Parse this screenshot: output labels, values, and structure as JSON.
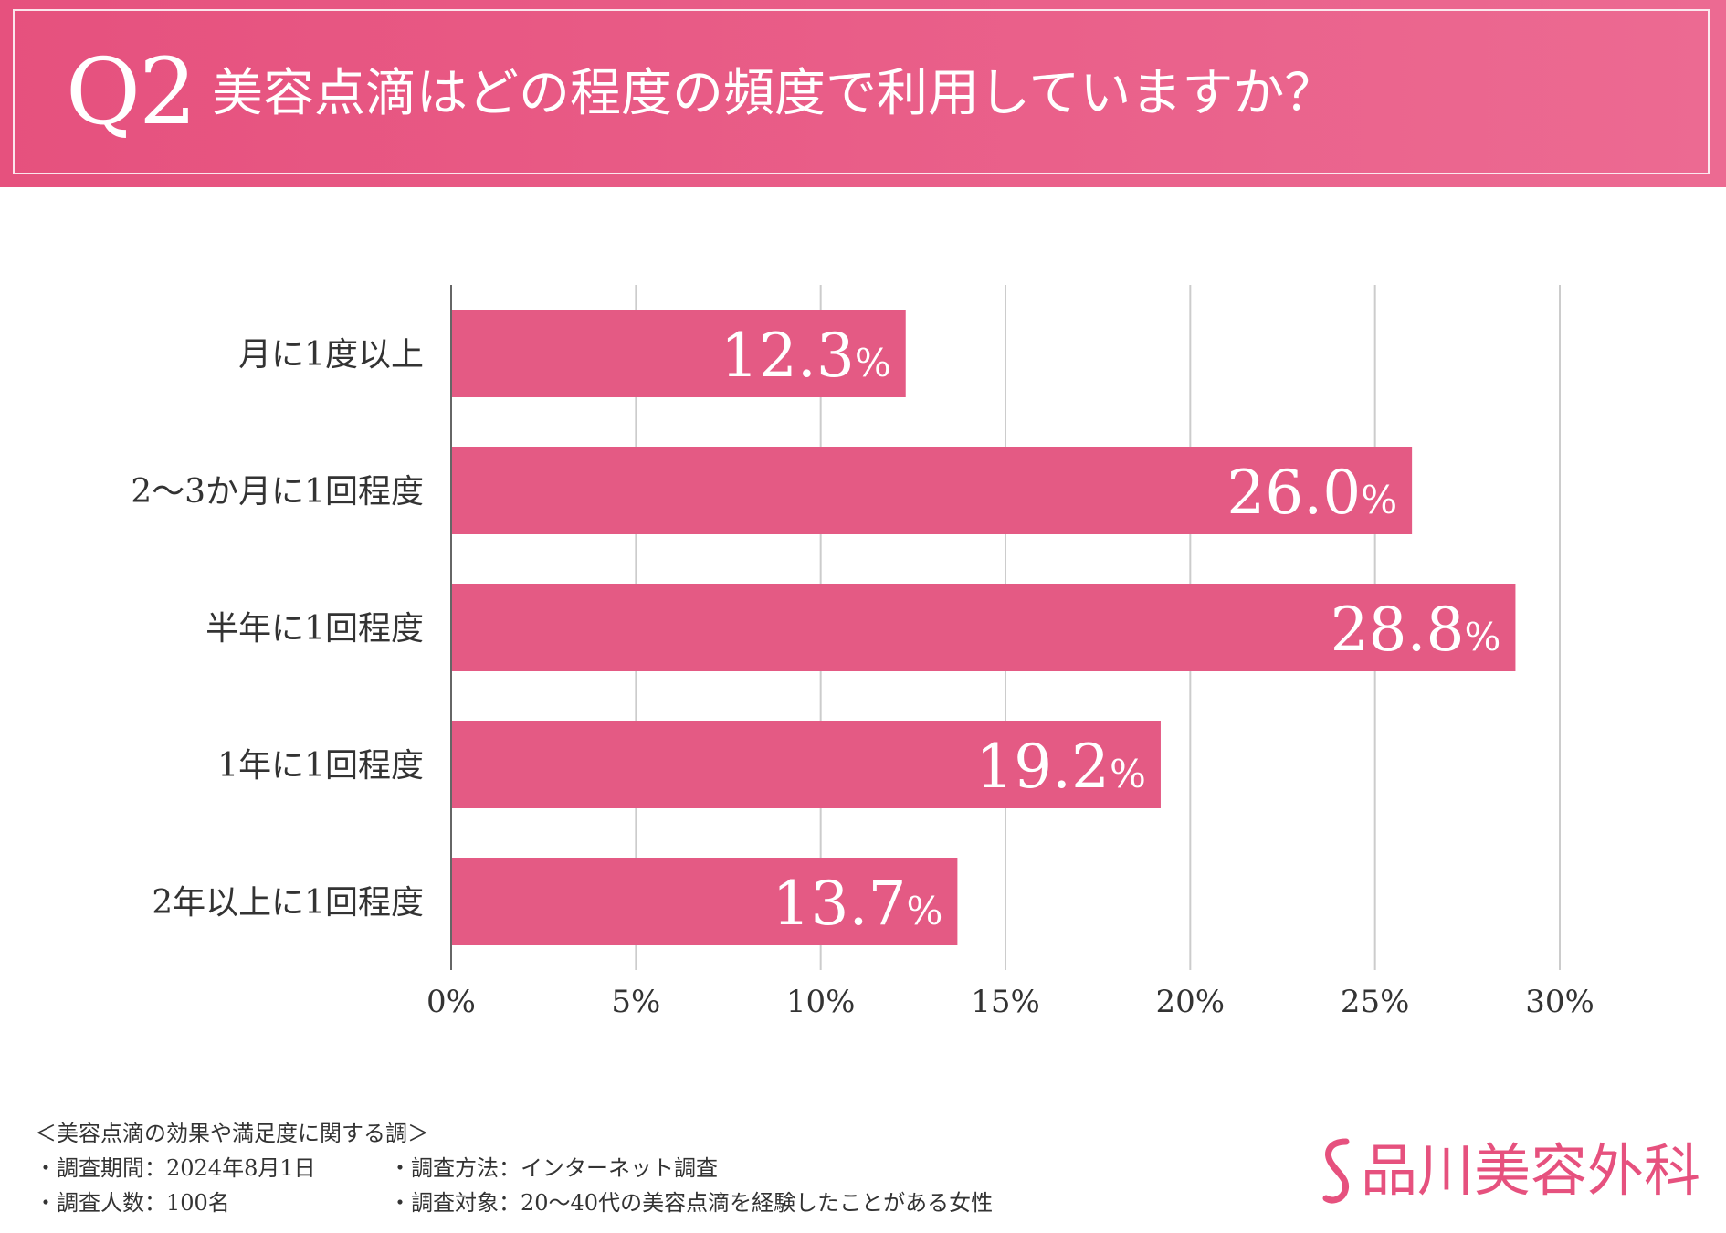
{
  "header": {
    "q_label": "Q2",
    "title": "美容点滴はどの程度の頻度で利用していますか？"
  },
  "colors": {
    "bar": "#e45a84",
    "header": "#e6517e",
    "grid": "#cccccc",
    "axis": "#666666",
    "text": "#333333",
    "label": "#ffffff"
  },
  "chart_data": {
    "type": "bar",
    "orientation": "horizontal",
    "title": "美容点滴はどの程度の頻度で利用していますか？",
    "categories": [
      "月に1度以上",
      "2〜3か月に1回程度",
      "半年に1回程度",
      "1年に1回程度",
      "2年以上に1回程度"
    ],
    "values": [
      12.3,
      26.0,
      28.8,
      19.2,
      13.7
    ],
    "value_labels": [
      "12.3",
      "26.0",
      "28.8",
      "19.2",
      "13.7"
    ],
    "value_suffix": "%",
    "xlim": [
      0,
      30
    ],
    "xticks": [
      0,
      5,
      10,
      15,
      20,
      25,
      30
    ],
    "xtick_labels": [
      "0%",
      "5%",
      "10%",
      "15%",
      "20%",
      "25%",
      "30%"
    ],
    "xlabel": "",
    "ylabel": "",
    "grid": true,
    "legend": false
  },
  "footer": {
    "survey_name": "＜美容点滴の効果や満足度に関する調＞",
    "period": "・調査期間：2024年8月1日",
    "method": "・調査方法：インターネット調査",
    "respondents": "・調査人数：100名",
    "target": "・調査対象：20〜40代の美容点滴を経験したことがある女性"
  },
  "brand": {
    "name": "品川美容外科",
    "logo_icon": "s-curve-logo-icon"
  }
}
